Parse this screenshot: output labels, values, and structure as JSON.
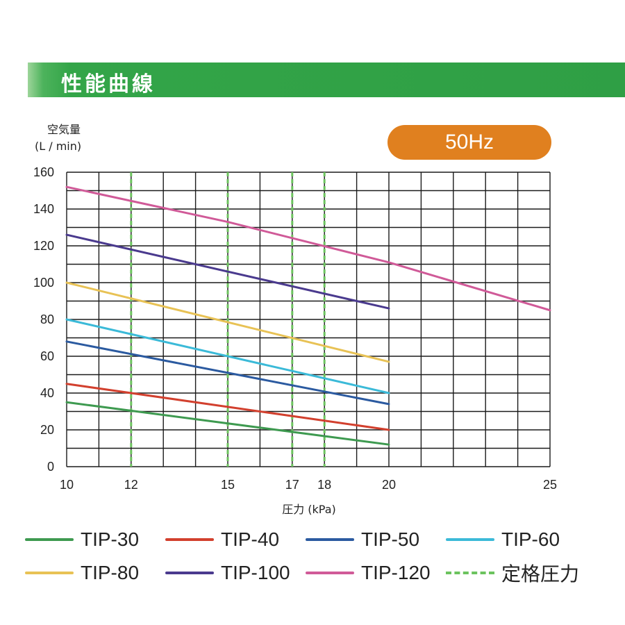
{
  "header": {
    "title": "性能曲線"
  },
  "badge": {
    "label": "50Hz"
  },
  "chart_data": {
    "type": "line",
    "ylabel": "空気量",
    "ylabel_unit": "(L / min)",
    "xlabel": "圧力 (kPa)",
    "xlim": [
      10,
      25
    ],
    "ylim": [
      0,
      160
    ],
    "x_ticks": [
      10,
      12,
      15,
      17,
      18,
      20,
      25
    ],
    "y_ticks": [
      0,
      20,
      40,
      60,
      80,
      100,
      120,
      140,
      160
    ],
    "grid": true,
    "series": [
      {
        "name": "TIP-30",
        "color": "#3e9a50",
        "x": [
          10,
          20
        ],
        "y": [
          35,
          12
        ]
      },
      {
        "name": "TIP-40",
        "color": "#d2402e",
        "x": [
          10,
          20
        ],
        "y": [
          45,
          20
        ]
      },
      {
        "name": "TIP-50",
        "color": "#2b5aa0",
        "x": [
          10,
          20
        ],
        "y": [
          68,
          34
        ]
      },
      {
        "name": "TIP-60",
        "color": "#3bbad8",
        "x": [
          10,
          20
        ],
        "y": [
          80,
          40
        ]
      },
      {
        "name": "TIP-80",
        "color": "#e8c255",
        "x": [
          10,
          20
        ],
        "y": [
          100,
          57
        ]
      },
      {
        "name": "TIP-100",
        "color": "#4a3a8e",
        "x": [
          10,
          20
        ],
        "y": [
          126,
          86
        ]
      },
      {
        "name": "TIP-120",
        "color": "#d05a98",
        "x": [
          10,
          15,
          20,
          25
        ],
        "y": [
          152,
          133,
          111,
          85
        ]
      }
    ],
    "rated_pressure": {
      "name": "定格圧力",
      "color": "#6cc35e",
      "x": [
        12,
        15,
        17,
        18
      ]
    }
  }
}
